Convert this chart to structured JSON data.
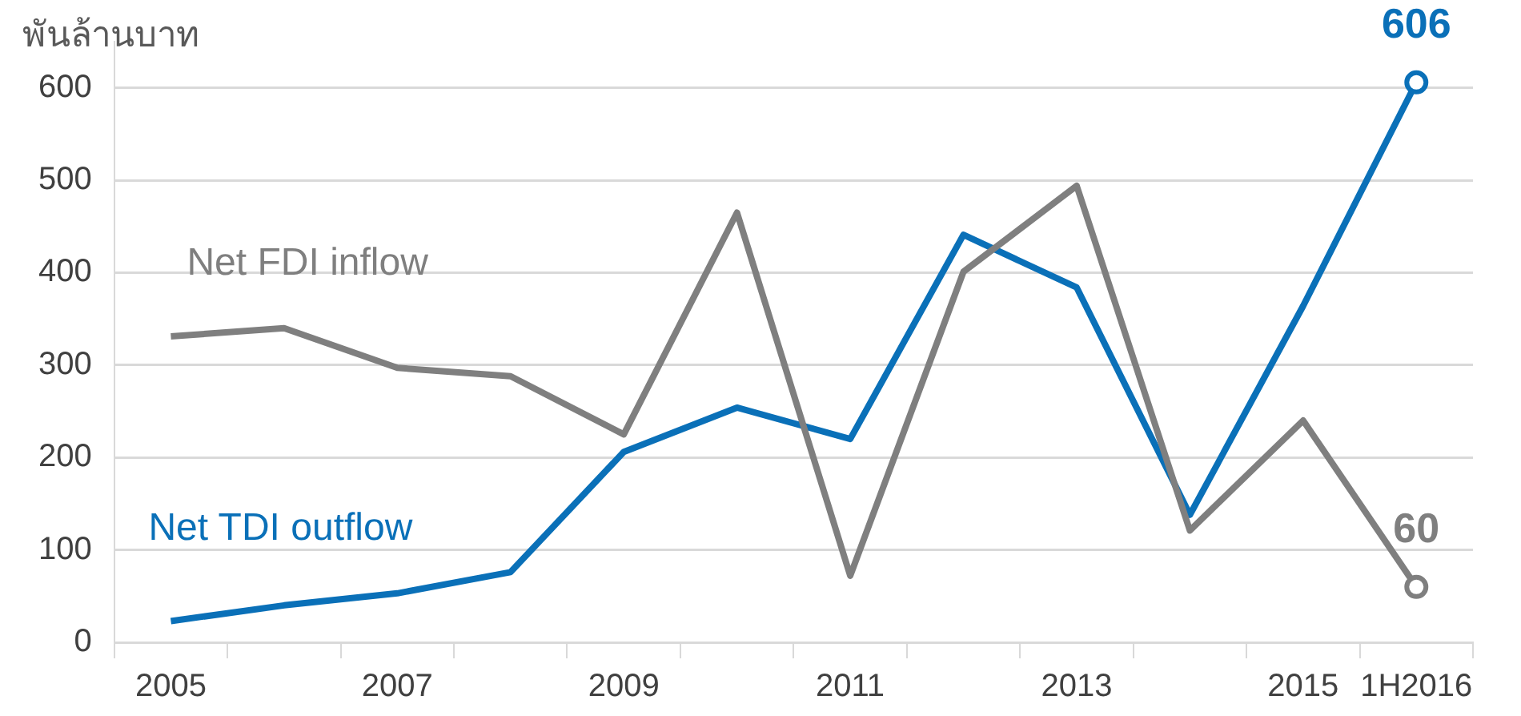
{
  "chart_data": {
    "type": "line",
    "ylabel": "พันล้านบาท",
    "categories": [
      "2005",
      null,
      "2007",
      null,
      "2009",
      null,
      "2011",
      null,
      "2013",
      null,
      "2015",
      "1H2016"
    ],
    "series": [
      {
        "name": "Net FDI inflow",
        "color": "#7f7f7f",
        "values": [
          331,
          340,
          297,
          288,
          225,
          465,
          72,
          401,
          494,
          121,
          240,
          60
        ],
        "value_labels": [
          null,
          null,
          null,
          null,
          null,
          null,
          null,
          null,
          null,
          null,
          null,
          "60"
        ]
      },
      {
        "name": "Net TDI outflow",
        "color": "#0a70b8",
        "values": [
          23,
          40,
          53,
          76,
          206,
          254,
          220,
          441,
          384,
          138,
          364,
          606
        ],
        "value_labels": [
          null,
          null,
          null,
          null,
          null,
          null,
          null,
          null,
          null,
          null,
          null,
          "606"
        ]
      }
    ],
    "ylim": [
      0,
      650
    ],
    "yticks": [
      0,
      100,
      200,
      300,
      400,
      500,
      600
    ],
    "grid": "y",
    "legend": false,
    "marker": "none",
    "line_style": "solid"
  }
}
